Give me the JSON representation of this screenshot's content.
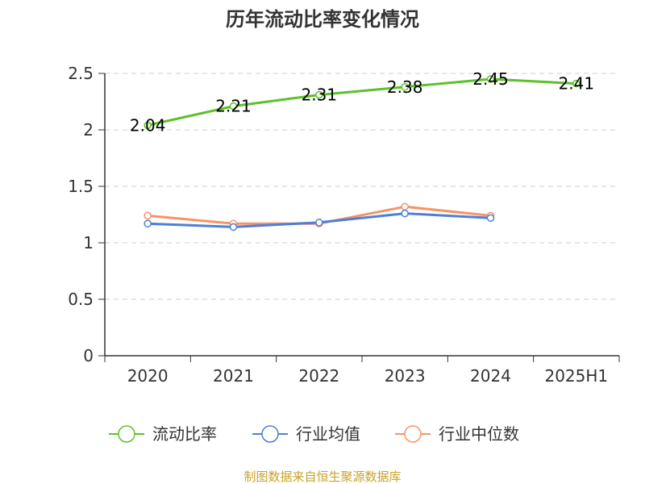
{
  "chart_data": {
    "type": "line",
    "title": "历年流动比率变化情况",
    "categories": [
      "2020",
      "2021",
      "2022",
      "2023",
      "2024",
      "2025H1"
    ],
    "ylim": [
      0,
      2.5
    ],
    "yticks": [
      "0",
      "0.5",
      "1",
      "1.5",
      "2",
      "2.5"
    ],
    "grid": true,
    "legend_position": "bottom",
    "series": [
      {
        "name": "流动比率",
        "color": "#5cc12a",
        "values": [
          2.04,
          2.21,
          2.31,
          2.38,
          2.45,
          2.41
        ],
        "labels": [
          "2.04",
          "2.21",
          "2.31",
          "2.38",
          "2.45",
          "2.41"
        ]
      },
      {
        "name": "行业均值",
        "color": "#4e7fd8",
        "values": [
          1.17,
          1.14,
          1.18,
          1.26,
          1.22,
          null
        ]
      },
      {
        "name": "行业中位数",
        "color": "#f59466",
        "values": [
          1.24,
          1.17,
          1.17,
          1.32,
          1.24,
          null
        ]
      }
    ]
  },
  "footer": {
    "source": "制图数据来自恒生聚源数据库"
  }
}
